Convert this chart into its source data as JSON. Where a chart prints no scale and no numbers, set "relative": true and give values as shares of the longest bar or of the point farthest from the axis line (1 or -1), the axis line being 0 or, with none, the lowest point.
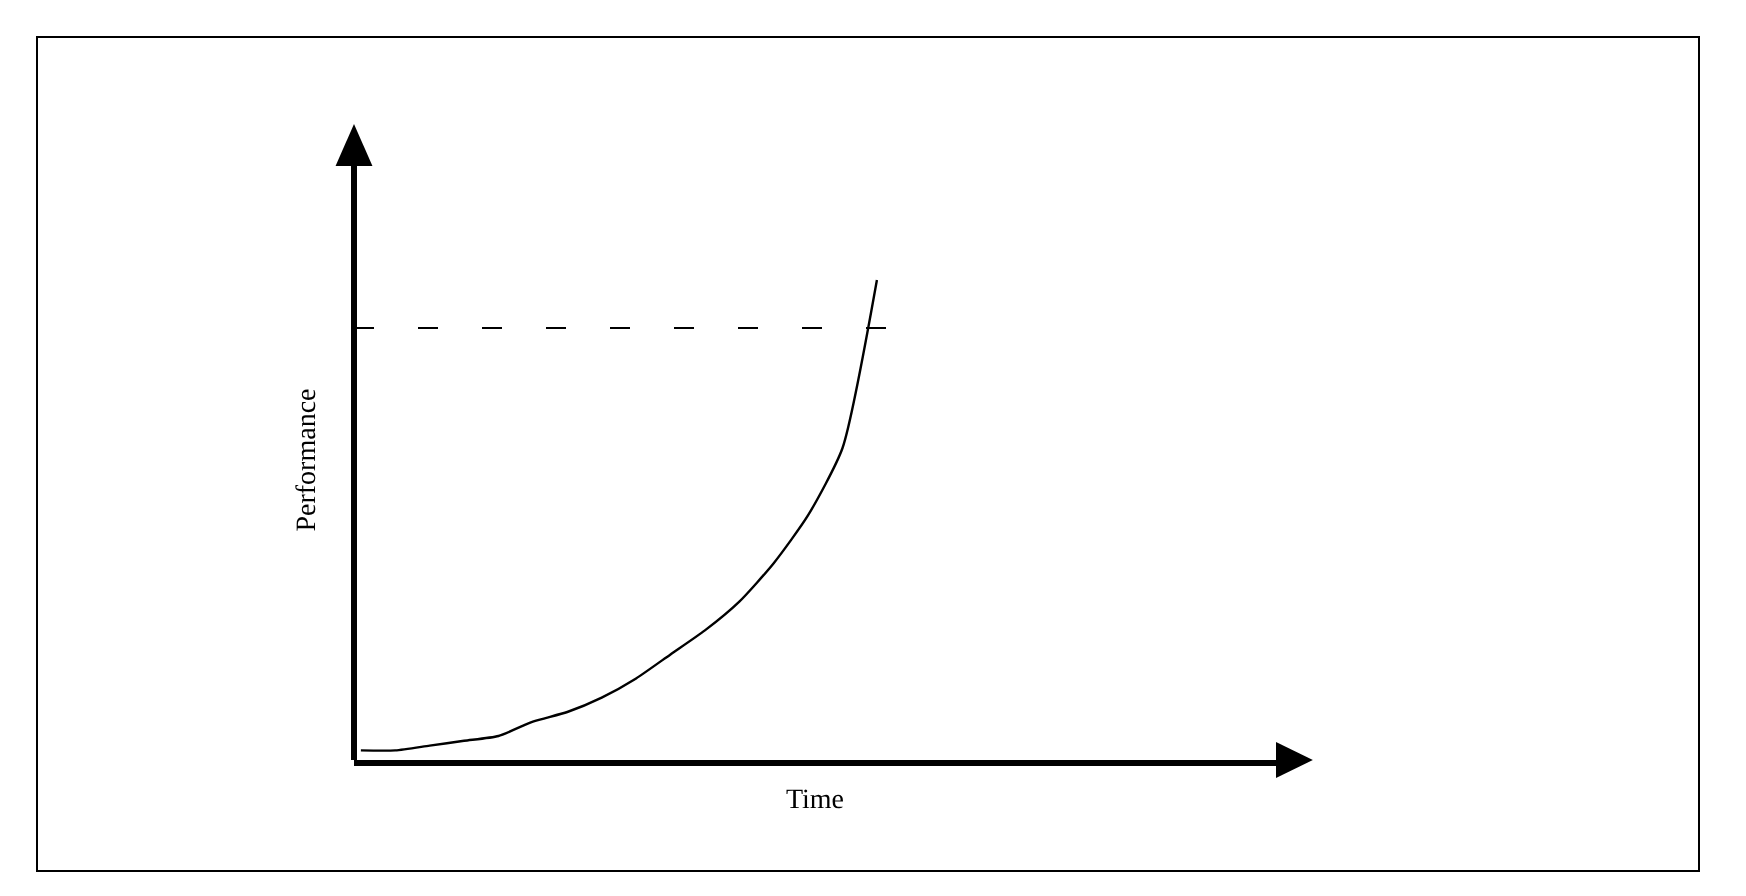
{
  "chart_data": {
    "type": "line",
    "relative": true,
    "xlabel": "Time",
    "ylabel": "Performance",
    "categories": [
      null,
      null,
      null,
      null,
      null,
      null,
      null,
      null,
      null,
      null,
      null,
      null,
      null,
      null,
      null,
      null,
      null,
      null,
      null,
      null,
      null,
      null,
      null,
      null,
      null,
      null,
      null
    ],
    "series": [
      {
        "color": "#000000",
        "values": [
          0.02,
          0.02,
          0.03,
          0.04,
          0.05,
          0.08,
          0.1,
          0.13,
          0.17,
          0.22,
          0.27,
          0.33,
          0.41,
          0.51,
          0.65,
          1.0,
          null,
          null,
          null,
          null,
          null,
          null,
          null,
          null,
          null,
          null,
          null
        ]
      }
    ],
    "ref_lines": [
      {
        "axis": "y",
        "value": 0.9,
        "color": "#000000",
        "line_style": "dashed"
      }
    ],
    "marker": "none",
    "line_style": "solid"
  }
}
